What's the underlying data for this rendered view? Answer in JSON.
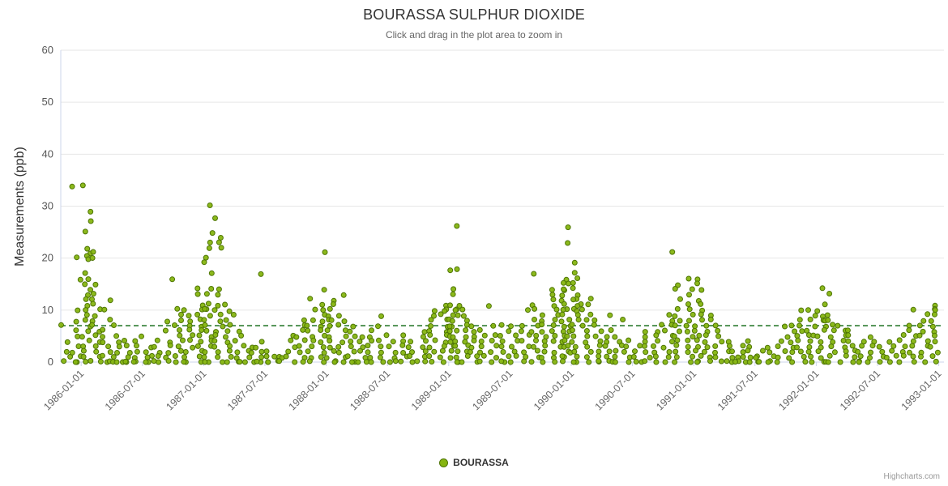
{
  "title": "BOURASSA SULPHUR DIOXIDE",
  "subtitle": "Click and drag in the plot area to zoom in",
  "credits": "Highcharts.com",
  "legend": {
    "series_label": "BOURASSA"
  },
  "chart_data": {
    "type": "scatter",
    "series_name": "BOURASSA",
    "title": "BOURASSA SULPHUR DIOXIDE",
    "subtitle": "Click and drag in the plot area to zoom in",
    "xlabel": "",
    "ylabel": "Measurements (ppb)",
    "ylim": [
      0,
      60
    ],
    "yticks": [
      0,
      10,
      20,
      30,
      40,
      50,
      60
    ],
    "xticks": [
      "1986-01-01",
      "1986-07-01",
      "1987-01-01",
      "1987-07-01",
      "1988-01-01",
      "1988-07-01",
      "1989-01-01",
      "1989-07-01",
      "1990-01-01",
      "1990-07-01",
      "1991-01-01",
      "1991-07-01",
      "1992-01-01",
      "1992-07-01",
      "1993-01-01"
    ],
    "x_range": [
      "1985-11-01",
      "1993-01-15"
    ],
    "grid": "horizontal-only",
    "legend_position": "bottom-center",
    "marker_color": "#86b510",
    "marker_stroke": "#4e7505",
    "trend_line": {
      "y": 7,
      "style": "dashed",
      "color": "#2e7d32"
    },
    "monthly_points": [
      {
        "m": "1985-11",
        "v": [
          7,
          4,
          2,
          1,
          0
        ]
      },
      {
        "m": "1985-12",
        "v": [
          34,
          20,
          16,
          10,
          8,
          6,
          5,
          3,
          2,
          1,
          0,
          0
        ]
      },
      {
        "m": "1986-01",
        "v": [
          34,
          29,
          27,
          25,
          22,
          21,
          20.5,
          20,
          17,
          16,
          15,
          14,
          13,
          12,
          11,
          10,
          9,
          8,
          7,
          6,
          5,
          4,
          3,
          2,
          1,
          0,
          0
        ]
      },
      {
        "m": "1986-02",
        "v": [
          21,
          20,
          15,
          13,
          12,
          11,
          10,
          9,
          8,
          7,
          6,
          5,
          4,
          3,
          2,
          1,
          0
        ]
      },
      {
        "m": "1986-03",
        "v": [
          12,
          10,
          8,
          6,
          5,
          4,
          3,
          2,
          1,
          0,
          0
        ]
      },
      {
        "m": "1986-04",
        "v": [
          7,
          5,
          4,
          3,
          2,
          1,
          0,
          0
        ]
      },
      {
        "m": "1986-05",
        "v": [
          4,
          3,
          2,
          1,
          0,
          0,
          0
        ]
      },
      {
        "m": "1986-06",
        "v": [
          5,
          4,
          3,
          2,
          1,
          0,
          0
        ]
      },
      {
        "m": "1986-07",
        "v": [
          3,
          2,
          1,
          1,
          0,
          0
        ]
      },
      {
        "m": "1986-08",
        "v": [
          4,
          3,
          2,
          1,
          0,
          0
        ]
      },
      {
        "m": "1986-09",
        "v": [
          16,
          8,
          6,
          4,
          3,
          2,
          1,
          0
        ]
      },
      {
        "m": "1986-10",
        "v": [
          10,
          9,
          8,
          7,
          6,
          5,
          4,
          3,
          2,
          1,
          0
        ]
      },
      {
        "m": "1986-11",
        "v": [
          10,
          9,
          8,
          7,
          6,
          5,
          4,
          3,
          2,
          1,
          0,
          0
        ]
      },
      {
        "m": "1986-12",
        "v": [
          14,
          13,
          11,
          10,
          9,
          8,
          7,
          6,
          5,
          4,
          3,
          2,
          1,
          0
        ]
      },
      {
        "m": "1987-01",
        "v": [
          30,
          25,
          23,
          22,
          20,
          19,
          17,
          14,
          13,
          11,
          10,
          10,
          9,
          8,
          7,
          6,
          5,
          4,
          3,
          2,
          1,
          0,
          0
        ]
      },
      {
        "m": "1987-02",
        "v": [
          27.5,
          24,
          23,
          22,
          14,
          13,
          11,
          10,
          9,
          8,
          7,
          6,
          5,
          4,
          3,
          2,
          1,
          0
        ]
      },
      {
        "m": "1987-03",
        "v": [
          11,
          10,
          9,
          8,
          7,
          6,
          5,
          4,
          3,
          2,
          1,
          0
        ]
      },
      {
        "m": "1987-04",
        "v": [
          6,
          5,
          4,
          3,
          2,
          1,
          0,
          0
        ]
      },
      {
        "m": "1987-05",
        "v": [
          3,
          2,
          2,
          1,
          0,
          0
        ]
      },
      {
        "m": "1987-06",
        "v": [
          17,
          4,
          3,
          2,
          1,
          0,
          0
        ]
      },
      {
        "m": "1987-07",
        "v": [
          2,
          1,
          1,
          0,
          0
        ]
      },
      {
        "m": "1987-08",
        "v": [
          1,
          1,
          0,
          0
        ]
      },
      {
        "m": "1987-09",
        "v": [
          5,
          4,
          3,
          2,
          1,
          0
        ]
      },
      {
        "m": "1987-10",
        "v": [
          8,
          7,
          6,
          5,
          4,
          3,
          2,
          1,
          0
        ]
      },
      {
        "m": "1987-11",
        "v": [
          12,
          10,
          8,
          7,
          6,
          5,
          4,
          3,
          2,
          1,
          0
        ]
      },
      {
        "m": "1987-12",
        "v": [
          21,
          14,
          11,
          10,
          9,
          8,
          7,
          6,
          5,
          4,
          3,
          2,
          1,
          0
        ]
      },
      {
        "m": "1988-01",
        "v": [
          12,
          11,
          10,
          9,
          8,
          8,
          7,
          6,
          5,
          4,
          3,
          2,
          1,
          0,
          0
        ]
      },
      {
        "m": "1988-02",
        "v": [
          13,
          9,
          8,
          7,
          6,
          5,
          4,
          3,
          2,
          1,
          0
        ]
      },
      {
        "m": "1988-03",
        "v": [
          7,
          6,
          5,
          4,
          3,
          2,
          1,
          0,
          0
        ]
      },
      {
        "m": "1988-04",
        "v": [
          5,
          4,
          3,
          2,
          1,
          0,
          0
        ]
      },
      {
        "m": "1988-05",
        "v": [
          6,
          5,
          4,
          3,
          2,
          1,
          0
        ]
      },
      {
        "m": "1988-06",
        "v": [
          9,
          7,
          5,
          4,
          3,
          2,
          1,
          0
        ]
      },
      {
        "m": "1988-07",
        "v": [
          4,
          3,
          2,
          1,
          0,
          0
        ]
      },
      {
        "m": "1988-08",
        "v": [
          5,
          4,
          3,
          2,
          1,
          0
        ]
      },
      {
        "m": "1988-09",
        "v": [
          4,
          3,
          2,
          1,
          0,
          0
        ]
      },
      {
        "m": "1988-10",
        "v": [
          6,
          5,
          4,
          3,
          2,
          1,
          0
        ]
      },
      {
        "m": "1988-11",
        "v": [
          10,
          9,
          8,
          7,
          6,
          5,
          4,
          3,
          2,
          1,
          0
        ]
      },
      {
        "m": "1988-12",
        "v": [
          11,
          10,
          10,
          9,
          8,
          7,
          6,
          5,
          4,
          3,
          2,
          1,
          0
        ]
      },
      {
        "m": "1989-01",
        "v": [
          26,
          18,
          17.5,
          14,
          13,
          11,
          10,
          10,
          9,
          9,
          8,
          8,
          7,
          7,
          6,
          6,
          5,
          5,
          4,
          4,
          3,
          3,
          2,
          2,
          1,
          1,
          0,
          0
        ]
      },
      {
        "m": "1989-02",
        "v": [
          11,
          10,
          9,
          8,
          7,
          6,
          5,
          4,
          3,
          2,
          1,
          0
        ]
      },
      {
        "m": "1989-03",
        "v": [
          7,
          6,
          5,
          4,
          3,
          2,
          1,
          0
        ]
      },
      {
        "m": "1989-04",
        "v": [
          11,
          6,
          5,
          4,
          3,
          2,
          1,
          0
        ]
      },
      {
        "m": "1989-05",
        "v": [
          7,
          5,
          4,
          3,
          2,
          1,
          0
        ]
      },
      {
        "m": "1989-06",
        "v": [
          7,
          6,
          5,
          4,
          3,
          2,
          1,
          0,
          0
        ]
      },
      {
        "m": "1989-07",
        "v": [
          7,
          5,
          4,
          3,
          2,
          1,
          0
        ]
      },
      {
        "m": "1989-08",
        "v": [
          10,
          7,
          6,
          5,
          4,
          3,
          2,
          1,
          0
        ]
      },
      {
        "m": "1989-09",
        "v": [
          17,
          11,
          10,
          8,
          7,
          6,
          5,
          4,
          3,
          2,
          1,
          0
        ]
      },
      {
        "m": "1989-10",
        "v": [
          9,
          8,
          7,
          6,
          5,
          4,
          3,
          2,
          1,
          0
        ]
      },
      {
        "m": "1989-11",
        "v": [
          14,
          13,
          12,
          11,
          10,
          9,
          8,
          7,
          6,
          5,
          4,
          3,
          2,
          1,
          0
        ]
      },
      {
        "m": "1989-12",
        "v": [
          26,
          23,
          16,
          15,
          15,
          14,
          14,
          13,
          12,
          11,
          10,
          10,
          9,
          8,
          8,
          7,
          7,
          6,
          6,
          5,
          5,
          4,
          4,
          3,
          3,
          2,
          2,
          1,
          1,
          0
        ]
      },
      {
        "m": "1990-01",
        "v": [
          19,
          17,
          16,
          15,
          14,
          13,
          12,
          12,
          11,
          11,
          10,
          10,
          9,
          8,
          7,
          6,
          5,
          4,
          3,
          2,
          1,
          0,
          0
        ]
      },
      {
        "m": "1990-02",
        "v": [
          12,
          11,
          10,
          9,
          8,
          7,
          6,
          5,
          4,
          3,
          2,
          1,
          0
        ]
      },
      {
        "m": "1990-03",
        "v": [
          8,
          7,
          6,
          5,
          4,
          3,
          2,
          1,
          0,
          0
        ]
      },
      {
        "m": "1990-04",
        "v": [
          9,
          6,
          5,
          4,
          3,
          2,
          1,
          0
        ]
      },
      {
        "m": "1990-05",
        "v": [
          5,
          4,
          3,
          2,
          1,
          0,
          0
        ]
      },
      {
        "m": "1990-06",
        "v": [
          8,
          4,
          3,
          2,
          1,
          0
        ]
      },
      {
        "m": "1990-07",
        "v": [
          3,
          2,
          1,
          0,
          0
        ]
      },
      {
        "m": "1990-08",
        "v": [
          6,
          5,
          4,
          3,
          2,
          1,
          0
        ]
      },
      {
        "m": "1990-09",
        "v": [
          7,
          6,
          5,
          4,
          3,
          2,
          1,
          0
        ]
      },
      {
        "m": "1990-10",
        "v": [
          21,
          9,
          8,
          7,
          6,
          5,
          4,
          3,
          2,
          1,
          0
        ]
      },
      {
        "m": "1990-11",
        "v": [
          15,
          14,
          12,
          10,
          9,
          8,
          7,
          6,
          5,
          4,
          3,
          2,
          1,
          0
        ]
      },
      {
        "m": "1990-12",
        "v": [
          16,
          14,
          13,
          11,
          10,
          9,
          8,
          7,
          6,
          5,
          4,
          3,
          2,
          1,
          0
        ]
      },
      {
        "m": "1991-01",
        "v": [
          16,
          15,
          14,
          12,
          11,
          10,
          9,
          8,
          7,
          6,
          5,
          4,
          3,
          2,
          1,
          0,
          0
        ]
      },
      {
        "m": "1991-02",
        "v": [
          9,
          8,
          7,
          6,
          5,
          4,
          3,
          2,
          1,
          0
        ]
      },
      {
        "m": "1991-03",
        "v": [
          7,
          6,
          5,
          4,
          3,
          2,
          1,
          0
        ]
      },
      {
        "m": "1991-04",
        "v": [
          4,
          3,
          2,
          2,
          1,
          0,
          0
        ]
      },
      {
        "m": "1991-05",
        "v": [
          3,
          2,
          1,
          1,
          0,
          0
        ]
      },
      {
        "m": "1991-06",
        "v": [
          4,
          3,
          2,
          1,
          0,
          0
        ]
      },
      {
        "m": "1991-07",
        "v": [
          2,
          1,
          1,
          0,
          0
        ]
      },
      {
        "m": "1991-08",
        "v": [
          3,
          2,
          1,
          0,
          0
        ]
      },
      {
        "m": "1991-09",
        "v": [
          7,
          4,
          3,
          2,
          1,
          0
        ]
      },
      {
        "m": "1991-10",
        "v": [
          7,
          6,
          5,
          4,
          3,
          2,
          1,
          0
        ]
      },
      {
        "m": "1991-11",
        "v": [
          10,
          8,
          7,
          6,
          5,
          4,
          3,
          2,
          1,
          0
        ]
      },
      {
        "m": "1991-12",
        "v": [
          10,
          9,
          8,
          7,
          6,
          5,
          5,
          4,
          3,
          2,
          1,
          0
        ]
      },
      {
        "m": "1992-01",
        "v": [
          14,
          11,
          10,
          9,
          8,
          8,
          7,
          6,
          5,
          4,
          3,
          2,
          1,
          0,
          0
        ]
      },
      {
        "m": "1992-02",
        "v": [
          13,
          9,
          8,
          7,
          6,
          5,
          4,
          3,
          2,
          1,
          0
        ]
      },
      {
        "m": "1992-03",
        "v": [
          7,
          6,
          5,
          4,
          3,
          2,
          1,
          0
        ]
      },
      {
        "m": "1992-04",
        "v": [
          6,
          5,
          4,
          3,
          2,
          1,
          0
        ]
      },
      {
        "m": "1992-05",
        "v": [
          4,
          3,
          2,
          1,
          0,
          0
        ]
      },
      {
        "m": "1992-06",
        "v": [
          5,
          4,
          3,
          2,
          1,
          0
        ]
      },
      {
        "m": "1992-07",
        "v": [
          3,
          2,
          1,
          1,
          0
        ]
      },
      {
        "m": "1992-08",
        "v": [
          4,
          3,
          2,
          1,
          0
        ]
      },
      {
        "m": "1992-09",
        "v": [
          5,
          4,
          3,
          2,
          1,
          0
        ]
      },
      {
        "m": "1992-10",
        "v": [
          10,
          7,
          6,
          5,
          4,
          3,
          2,
          1,
          0
        ]
      },
      {
        "m": "1992-11",
        "v": [
          9,
          8,
          7,
          6,
          5,
          4,
          3,
          2,
          1,
          0
        ]
      },
      {
        "m": "1992-12",
        "v": [
          11,
          10,
          10,
          9,
          8,
          7,
          6,
          5,
          4,
          3,
          2,
          1,
          0
        ]
      }
    ]
  }
}
